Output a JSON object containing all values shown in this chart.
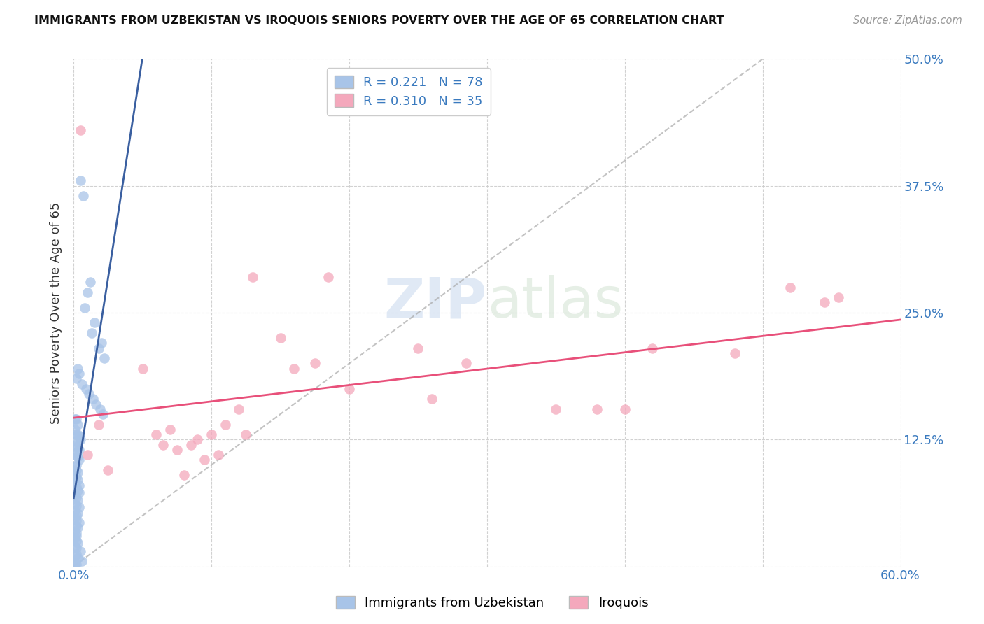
{
  "title": "IMMIGRANTS FROM UZBEKISTAN VS IROQUOIS SENIORS POVERTY OVER THE AGE OF 65 CORRELATION CHART",
  "source": "Source: ZipAtlas.com",
  "ylabel": "Seniors Poverty Over the Age of 65",
  "xlim": [
    0,
    0.6
  ],
  "ylim": [
    0,
    0.5
  ],
  "xtick_vals": [
    0.0,
    0.1,
    0.2,
    0.3,
    0.4,
    0.5,
    0.6
  ],
  "xtick_labels": [
    "0.0%",
    "",
    "",
    "",
    "",
    "",
    "60.0%"
  ],
  "ytick_vals": [
    0.0,
    0.125,
    0.25,
    0.375,
    0.5
  ],
  "ytick_labels": [
    "",
    "12.5%",
    "25.0%",
    "37.5%",
    "50.0%"
  ],
  "blue_R": 0.221,
  "blue_N": 78,
  "pink_R": 0.31,
  "pink_N": 35,
  "blue_color": "#a8c4e8",
  "pink_color": "#f4a8bc",
  "blue_line_color": "#3a5fa0",
  "pink_line_color": "#e8507a",
  "legend_label_blue": "Immigrants from Uzbekistan",
  "legend_label_pink": "Iroquois",
  "blue_scatter_x": [
    0.005,
    0.007,
    0.012,
    0.01,
    0.008,
    0.015,
    0.013,
    0.02,
    0.018,
    0.022,
    0.003,
    0.004,
    0.002,
    0.006,
    0.009,
    0.011,
    0.014,
    0.016,
    0.019,
    0.021,
    0.001,
    0.002,
    0.003,
    0.001,
    0.002,
    0.003,
    0.004,
    0.005,
    0.002,
    0.001,
    0.003,
    0.004,
    0.002,
    0.001,
    0.003,
    0.004,
    0.002,
    0.001,
    0.002,
    0.003,
    0.001,
    0.002,
    0.003,
    0.001,
    0.004,
    0.002,
    0.003,
    0.004,
    0.001,
    0.002,
    0.003,
    0.001,
    0.002,
    0.004,
    0.001,
    0.003,
    0.002,
    0.001,
    0.002,
    0.004,
    0.002,
    0.003,
    0.001,
    0.002,
    0.002,
    0.001,
    0.002,
    0.003,
    0.001,
    0.002,
    0.005,
    0.002,
    0.001,
    0.003,
    0.006,
    0.001,
    0.002,
    0.001
  ],
  "blue_scatter_y": [
    0.38,
    0.365,
    0.28,
    0.27,
    0.255,
    0.24,
    0.23,
    0.22,
    0.215,
    0.205,
    0.195,
    0.19,
    0.185,
    0.18,
    0.175,
    0.17,
    0.165,
    0.16,
    0.155,
    0.15,
    0.145,
    0.145,
    0.14,
    0.135,
    0.13,
    0.13,
    0.128,
    0.125,
    0.123,
    0.12,
    0.118,
    0.115,
    0.112,
    0.11,
    0.108,
    0.105,
    0.1,
    0.098,
    0.095,
    0.093,
    0.09,
    0.088,
    0.085,
    0.082,
    0.08,
    0.078,
    0.075,
    0.073,
    0.07,
    0.068,
    0.065,
    0.062,
    0.06,
    0.058,
    0.055,
    0.052,
    0.05,
    0.048,
    0.045,
    0.043,
    0.04,
    0.038,
    0.035,
    0.033,
    0.03,
    0.028,
    0.025,
    0.023,
    0.02,
    0.018,
    0.015,
    0.012,
    0.01,
    0.008,
    0.005,
    0.003,
    0.002,
    0.001
  ],
  "pink_scatter_x": [
    0.005,
    0.01,
    0.018,
    0.025,
    0.05,
    0.06,
    0.065,
    0.07,
    0.075,
    0.08,
    0.085,
    0.09,
    0.095,
    0.1,
    0.105,
    0.11,
    0.12,
    0.125,
    0.13,
    0.15,
    0.16,
    0.175,
    0.185,
    0.2,
    0.25,
    0.26,
    0.285,
    0.35,
    0.38,
    0.4,
    0.42,
    0.48,
    0.52,
    0.545,
    0.555
  ],
  "pink_scatter_y": [
    0.43,
    0.11,
    0.14,
    0.095,
    0.195,
    0.13,
    0.12,
    0.135,
    0.115,
    0.09,
    0.12,
    0.125,
    0.105,
    0.13,
    0.11,
    0.14,
    0.155,
    0.13,
    0.285,
    0.225,
    0.195,
    0.2,
    0.285,
    0.175,
    0.215,
    0.165,
    0.2,
    0.155,
    0.155,
    0.155,
    0.215,
    0.21,
    0.275,
    0.26,
    0.265
  ],
  "diag_line_x": [
    0.0,
    0.5
  ],
  "diag_line_y": [
    0.0,
    0.5
  ]
}
